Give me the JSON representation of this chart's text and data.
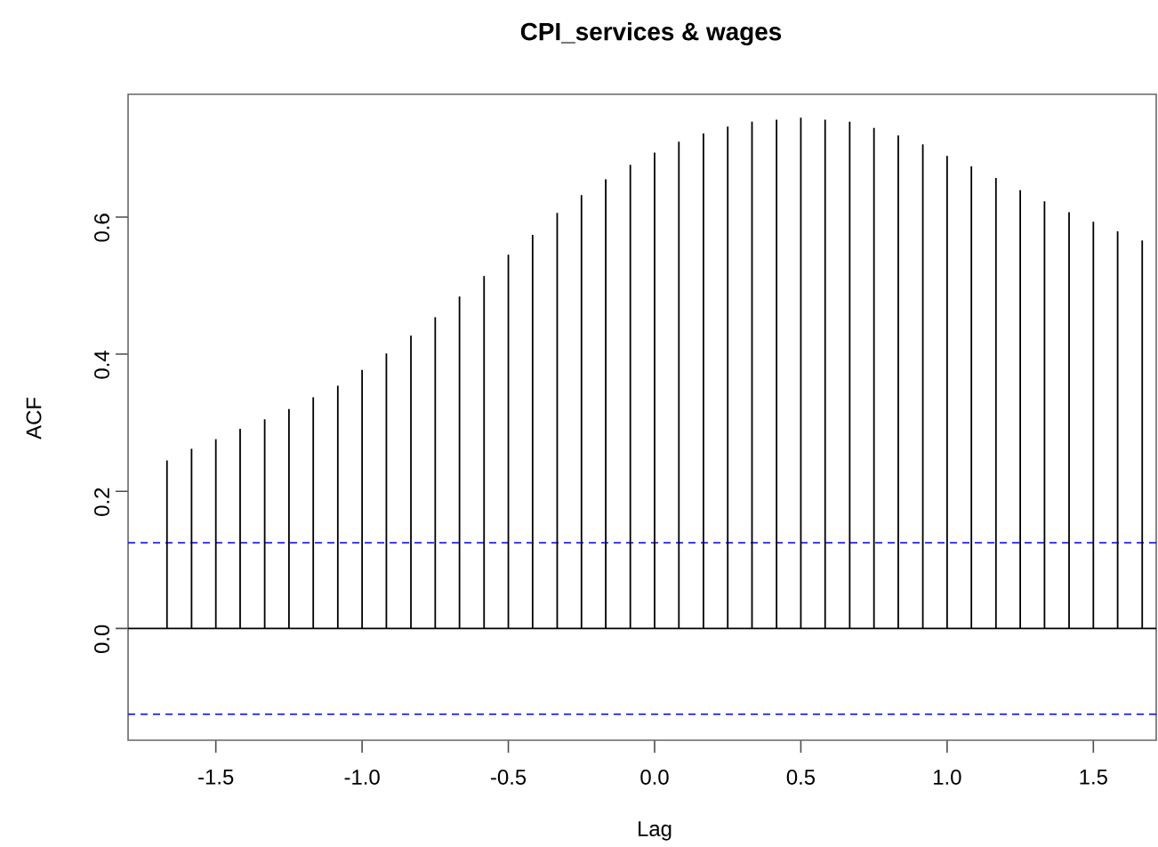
{
  "chart_data": {
    "type": "bar",
    "title": "CPI_services & wages",
    "xlabel": "Lag",
    "ylabel": "ACF",
    "x": [
      -1.667,
      -1.583,
      -1.5,
      -1.417,
      -1.333,
      -1.25,
      -1.167,
      -1.083,
      -1.0,
      -0.917,
      -0.833,
      -0.75,
      -0.667,
      -0.583,
      -0.5,
      -0.417,
      -0.333,
      -0.25,
      -0.167,
      -0.083,
      0.0,
      0.083,
      0.167,
      0.25,
      0.333,
      0.417,
      0.5,
      0.583,
      0.667,
      0.75,
      0.833,
      0.917,
      1.0,
      1.083,
      1.167,
      1.25,
      1.333,
      1.417,
      1.5,
      1.583,
      1.667
    ],
    "values": [
      0.245,
      0.262,
      0.276,
      0.291,
      0.305,
      0.32,
      0.337,
      0.354,
      0.377,
      0.401,
      0.427,
      0.454,
      0.484,
      0.514,
      0.545,
      0.574,
      0.606,
      0.632,
      0.655,
      0.676,
      0.694,
      0.71,
      0.722,
      0.732,
      0.739,
      0.742,
      0.745,
      0.742,
      0.739,
      0.73,
      0.719,
      0.706,
      0.689,
      0.674,
      0.657,
      0.639,
      0.623,
      0.607,
      0.593,
      0.579,
      0.566
    ],
    "color": "#000000",
    "xlim": [
      -1.8,
      1.715
    ],
    "ylim": [
      -0.163,
      0.779
    ],
    "xticks": [
      -1.5,
      {
        "value": -1.0,
        "label": "-1.0"
      },
      -0.5,
      {
        "value": 0,
        "label": "0.0"
      },
      0.5,
      {
        "value": 1.0,
        "label": "1.0"
      },
      1.5
    ],
    "yticks": [
      {
        "value": 0,
        "label": "0.0"
      },
      0.2,
      0.4,
      0.6
    ],
    "ref_lines": [
      {
        "axis": "y",
        "value": 0,
        "color": "#000000",
        "line_style": "solid"
      },
      {
        "axis": "y",
        "value": 0.125,
        "color": "#0000ff",
        "line_style": "dashed"
      },
      {
        "axis": "y",
        "value": -0.125,
        "color": "#0000ff",
        "line_style": "dashed"
      }
    ]
  }
}
